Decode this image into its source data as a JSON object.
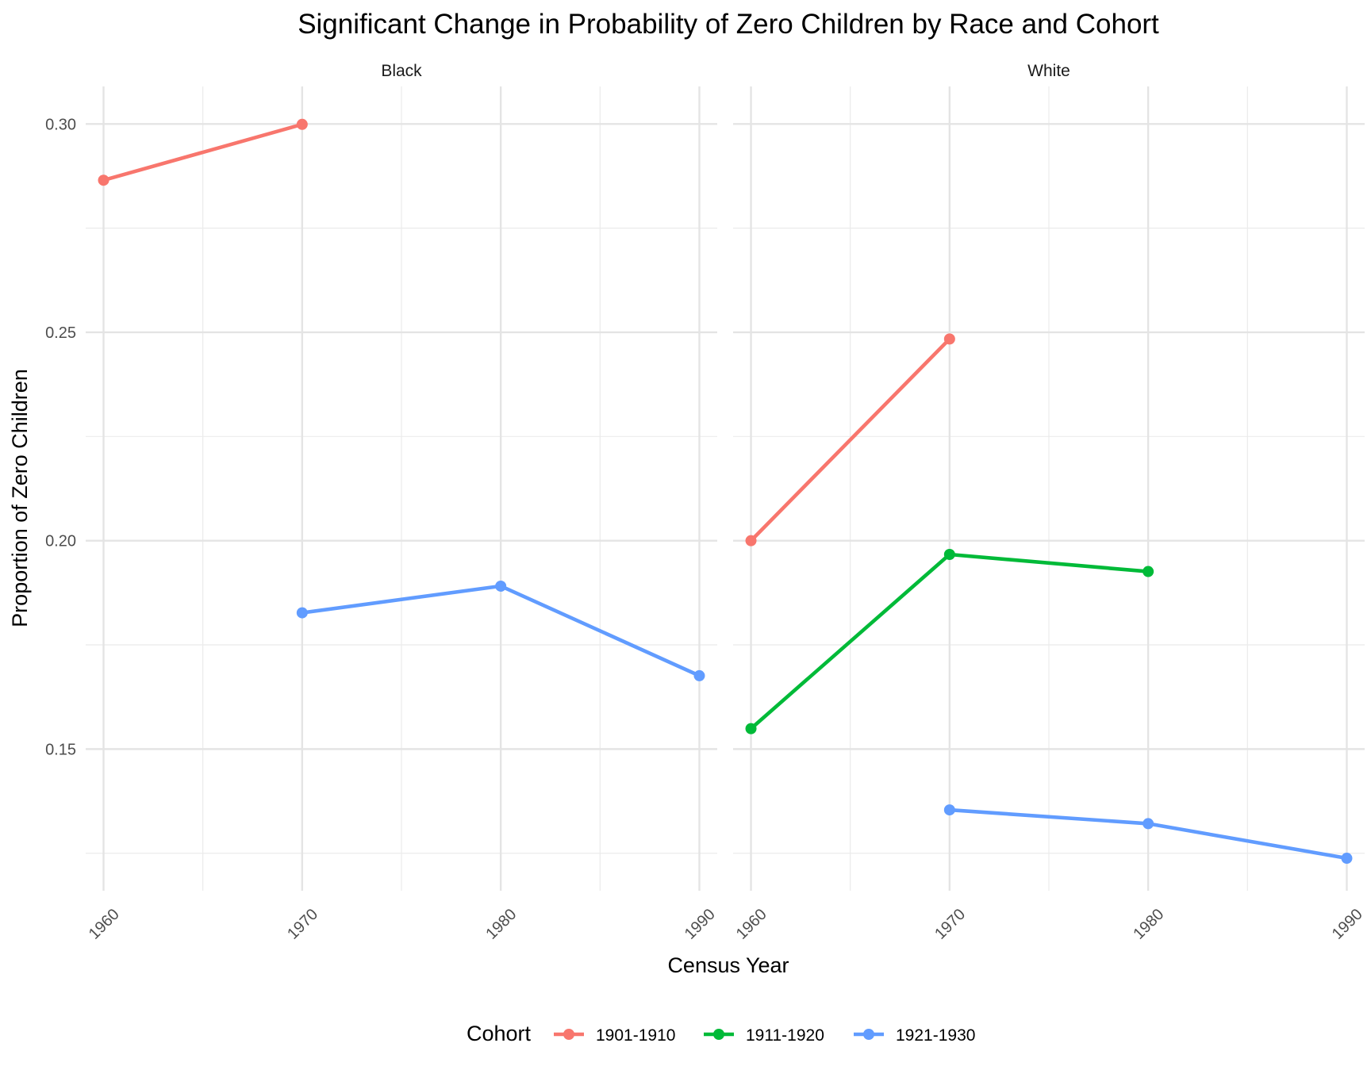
{
  "chart_data": {
    "type": "line",
    "title": "Significant Change in Probability of Zero Children by Race and Cohort",
    "xlabel": "Census Year",
    "ylabel": "Proportion of Zero Children",
    "x_ticks": [
      1960,
      1970,
      1980,
      1990
    ],
    "y_ticks": [
      0.15,
      0.2,
      0.25,
      0.3
    ],
    "y_tick_labels": [
      "0.15",
      "0.20",
      "0.25",
      "0.30"
    ],
    "xlim": [
      1959.1,
      1990.9
    ],
    "ylim": [
      0.116,
      0.309
    ],
    "grid": true,
    "legend": {
      "title": "Cohort",
      "position": "bottom",
      "entries": [
        {
          "name": "1901-1910",
          "color": "#F8766D"
        },
        {
          "name": "1911-1920",
          "color": "#00BA38"
        },
        {
          "name": "1921-1930",
          "color": "#619CFF"
        }
      ]
    },
    "panels": [
      {
        "label": "Black",
        "series": [
          {
            "name": "1901-1910",
            "color": "#F8766D",
            "x": [
              1960,
              1970
            ],
            "y": [
              0.2865,
              0.2999
            ]
          },
          {
            "name": "1921-1930",
            "color": "#619CFF",
            "x": [
              1970,
              1980,
              1990
            ],
            "y": [
              0.1827,
              0.1891,
              0.1676
            ]
          }
        ]
      },
      {
        "label": "White",
        "series": [
          {
            "name": "1901-1910",
            "color": "#F8766D",
            "x": [
              1960,
              1970
            ],
            "y": [
              0.2,
              0.2484
            ]
          },
          {
            "name": "1911-1920",
            "color": "#00BA38",
            "x": [
              1960,
              1970,
              1980
            ],
            "y": [
              0.1549,
              0.1967,
              0.1926
            ]
          },
          {
            "name": "1921-1930",
            "color": "#619CFF",
            "x": [
              1970,
              1980,
              1990
            ],
            "y": [
              0.1354,
              0.1321,
              0.1238
            ]
          }
        ]
      }
    ]
  }
}
